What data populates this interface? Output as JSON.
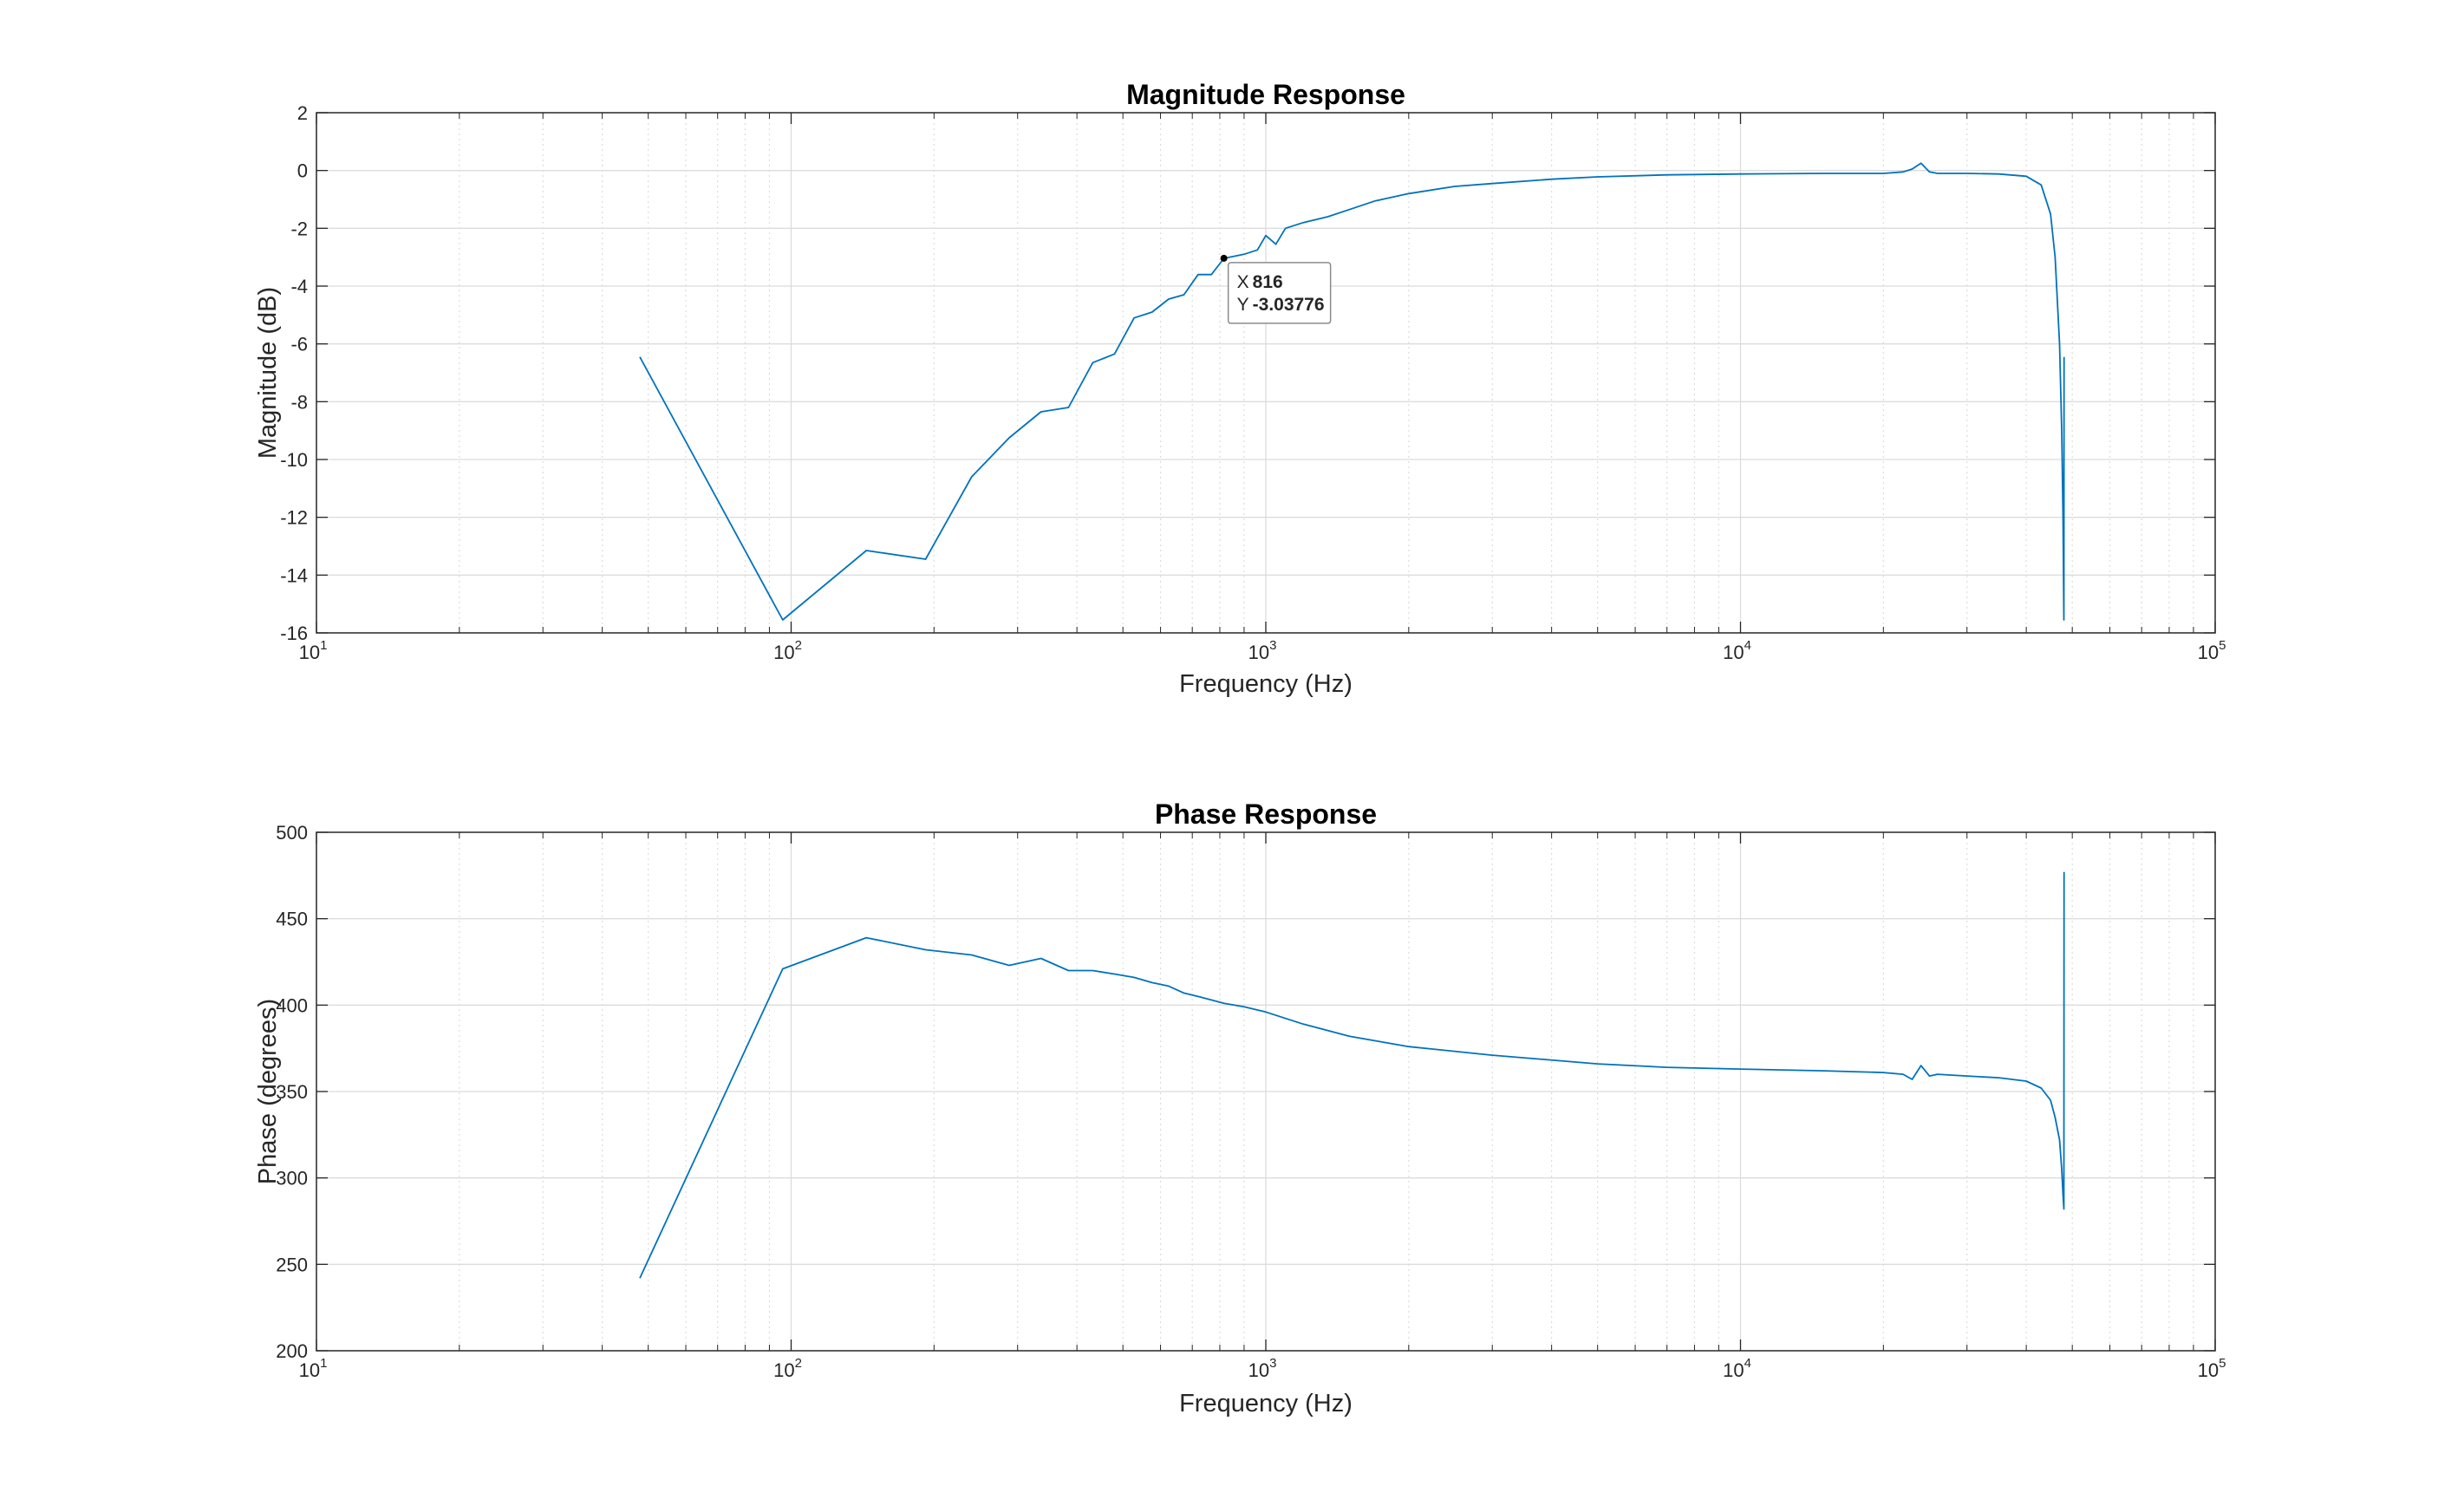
{
  "figure": {
    "colors": {
      "line": "#0072BD",
      "axis": "#262626",
      "grid_major": "#dcdcdc",
      "grid_minor": "#dcdcdc",
      "datatip_value": "#0a9bd8",
      "datatip_border": "#8c8c8c"
    }
  },
  "chart_data": [
    {
      "type": "line",
      "title": "Magnitude Response",
      "xlabel": "Frequency (Hz)",
      "ylabel": "Magnitude (dB)",
      "xscale": "log",
      "xlim": [
        10,
        100000
      ],
      "ylim": [
        -16,
        2
      ],
      "grid": "on (major and minor)",
      "x_ticks": [
        {
          "base": "10",
          "exp": "1"
        },
        {
          "base": "10",
          "exp": "2"
        },
        {
          "base": "10",
          "exp": "3"
        },
        {
          "base": "10",
          "exp": "4"
        },
        {
          "base": "10",
          "exp": "5"
        }
      ],
      "y_ticks": [
        "-16",
        "-14",
        "-12",
        "-10",
        "-8",
        "-6",
        "-4",
        "-2",
        "0",
        "2"
      ],
      "series": [
        {
          "x": [
            48,
            96,
            144,
            192,
            240,
            288,
            336,
            384,
            432,
            480,
            528,
            576,
            624,
            672,
            720,
            768,
            816,
            900,
            960,
            1000,
            1050,
            1100,
            1200,
            1350,
            1500,
            1700,
            2000,
            2500,
            3000,
            4000,
            5000,
            7000,
            10000,
            15000,
            20000,
            22000,
            23000,
            24000,
            25000,
            26000,
            28000,
            30000,
            35000,
            40000,
            43000,
            45000,
            46000,
            47000,
            47500,
            47800,
            48000,
            48050
          ],
          "y": [
            -6.45,
            -15.55,
            -13.15,
            -13.45,
            -10.6,
            -9.25,
            -8.35,
            -8.2,
            -6.65,
            -6.35,
            -5.1,
            -4.9,
            -4.45,
            -4.3,
            -3.6,
            -3.6,
            -3.04,
            -2.9,
            -2.75,
            -2.25,
            -2.55,
            -2.0,
            -1.8,
            -1.6,
            -1.35,
            -1.05,
            -0.8,
            -0.55,
            -0.45,
            -0.3,
            -0.22,
            -0.15,
            -0.12,
            -0.1,
            -0.1,
            -0.05,
            0.05,
            0.25,
            -0.05,
            -0.1,
            -0.1,
            -0.1,
            -0.12,
            -0.2,
            -0.5,
            -1.5,
            -3.0,
            -6.0,
            -9.0,
            -12.0,
            -15.55,
            -6.45
          ]
        }
      ],
      "datatip": {
        "x_label": "X",
        "x_value": "816",
        "y_label": "Y",
        "y_value": "-3.03776",
        "x": 816,
        "y": -3.03776
      }
    },
    {
      "type": "line",
      "title": "Phase Response",
      "xlabel": "Frequency (Hz)",
      "ylabel": "Phase (degrees)",
      "xscale": "log",
      "xlim": [
        10,
        100000
      ],
      "ylim": [
        200,
        500
      ],
      "grid": "on (major and minor)",
      "x_ticks": [
        {
          "base": "10",
          "exp": "1"
        },
        {
          "base": "10",
          "exp": "2"
        },
        {
          "base": "10",
          "exp": "3"
        },
        {
          "base": "10",
          "exp": "4"
        },
        {
          "base": "10",
          "exp": "5"
        }
      ],
      "y_ticks": [
        "200",
        "250",
        "300",
        "350",
        "400",
        "450",
        "500"
      ],
      "series": [
        {
          "x": [
            48,
            96,
            144,
            192,
            240,
            288,
            336,
            384,
            432,
            480,
            528,
            576,
            624,
            672,
            720,
            768,
            816,
            900,
            1000,
            1200,
            1500,
            2000,
            3000,
            5000,
            7000,
            10000,
            15000,
            20000,
            22000,
            23000,
            24000,
            25000,
            26000,
            30000,
            35000,
            40000,
            43000,
            45000,
            46000,
            47000,
            47500,
            47800,
            48000,
            48050
          ],
          "y": [
            242,
            421,
            439,
            432,
            429,
            423,
            427,
            420,
            420,
            418,
            416,
            413,
            411,
            407,
            405,
            403,
            401,
            399,
            396,
            389,
            382,
            376,
            371,
            366,
            364,
            363,
            362,
            361,
            360,
            357,
            365,
            359,
            360,
            359,
            358,
            356,
            352,
            345,
            335,
            322,
            305,
            290,
            282,
            477
          ]
        }
      ]
    }
  ]
}
